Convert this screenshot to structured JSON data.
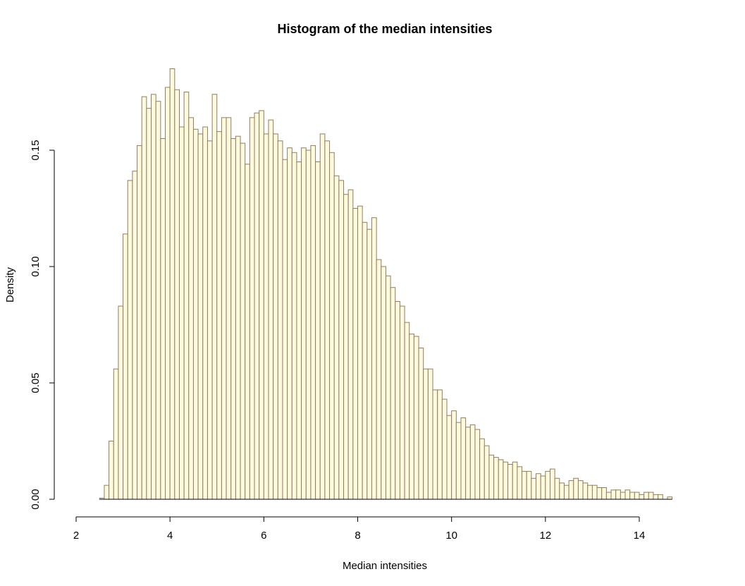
{
  "chart_data": {
    "type": "bar",
    "title": "Histogram of the median intensities",
    "xlabel": "Median intensities",
    "ylabel": "Density",
    "xlim": [
      2,
      14.6
    ],
    "ylim": [
      0,
      0.185
    ],
    "grid": false,
    "bar_fill": "#fffadc",
    "bar_border": "#8b7d6b",
    "bin_start": 2.5,
    "bin_width": 0.1,
    "x_ticks": [
      "2",
      "4",
      "6",
      "8",
      "10",
      "12",
      "14"
    ],
    "y_ticks": [
      "0.00",
      "0.05",
      "0.10",
      "0.15"
    ],
    "values": [
      0.0005,
      0.006,
      0.025,
      0.056,
      0.083,
      0.114,
      0.137,
      0.141,
      0.152,
      0.173,
      0.168,
      0.174,
      0.171,
      0.155,
      0.177,
      0.185,
      0.176,
      0.16,
      0.175,
      0.164,
      0.159,
      0.157,
      0.16,
      0.154,
      0.174,
      0.158,
      0.164,
      0.164,
      0.155,
      0.156,
      0.153,
      0.144,
      0.164,
      0.166,
      0.167,
      0.157,
      0.163,
      0.157,
      0.154,
      0.146,
      0.151,
      0.149,
      0.145,
      0.151,
      0.15,
      0.152,
      0.145,
      0.157,
      0.154,
      0.149,
      0.139,
      0.137,
      0.131,
      0.133,
      0.125,
      0.126,
      0.119,
      0.116,
      0.121,
      0.103,
      0.1,
      0.096,
      0.091,
      0.085,
      0.083,
      0.076,
      0.071,
      0.07,
      0.065,
      0.056,
      0.056,
      0.047,
      0.047,
      0.043,
      0.036,
      0.038,
      0.033,
      0.035,
      0.031,
      0.032,
      0.03,
      0.026,
      0.023,
      0.019,
      0.018,
      0.017,
      0.016,
      0.015,
      0.016,
      0.014,
      0.012,
      0.012,
      0.009,
      0.011,
      0.01,
      0.012,
      0.013,
      0.009,
      0.007,
      0.006,
      0.008,
      0.009,
      0.008,
      0.007,
      0.006,
      0.006,
      0.005,
      0.005,
      0.003,
      0.004,
      0.004,
      0.003,
      0.004,
      0.003,
      0.003,
      0.002,
      0.003,
      0.003,
      0.002,
      0.002,
      0.0,
      0.001
    ]
  }
}
